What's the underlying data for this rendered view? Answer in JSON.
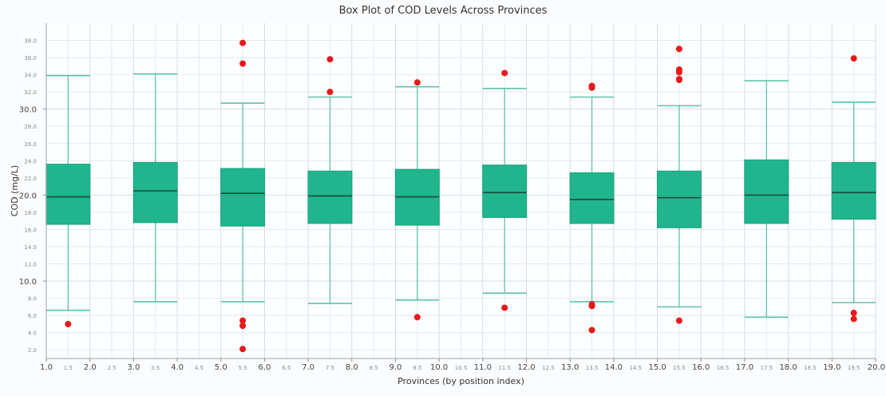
{
  "chart_data": {
    "type": "box",
    "title": "Box Plot of COD Levels Across Provinces",
    "xlabel": "Provinces (by position index)",
    "ylabel": "COD (mg/L)",
    "xlim": [
      1.0,
      20.0
    ],
    "ylim": [
      1.0,
      40.0
    ],
    "x_major_ticks": [
      "1.0",
      "2.0",
      "3.0",
      "4.0",
      "5.0",
      "6.0",
      "7.0",
      "8.0",
      "9.0",
      "10.0",
      "11.0",
      "12.0",
      "13.0",
      "14.0",
      "15.0",
      "16.0",
      "17.0",
      "18.0",
      "19.0",
      "20.0"
    ],
    "x_minor_ticks": [
      "1.5",
      "2.5",
      "3.5",
      "4.5",
      "5.5",
      "6.5",
      "7.5",
      "8.5",
      "9.5",
      "10.5",
      "11.5",
      "12.5",
      "13.5",
      "14.5",
      "15.5",
      "16.5",
      "17.5",
      "18.5",
      "19.5"
    ],
    "y_major_ticks": [
      "10.0",
      "20.0",
      "30.0"
    ],
    "y_minor_ticks": [
      "2.0",
      "4.0",
      "6.0",
      "8.0",
      "12.0",
      "14.0",
      "16.0",
      "18.0",
      "22.0",
      "24.0",
      "26.0",
      "28.0",
      "32.0",
      "34.0",
      "36.0",
      "38.0"
    ],
    "grid": true,
    "colors": {
      "box": "#20b58c",
      "whisker": "#5ec3a8",
      "median": "#1c4a3c",
      "outlier": "#e8191b"
    },
    "boxes": [
      {
        "pos": 1.5,
        "whislo": 6.6,
        "q1": 16.6,
        "med": 19.8,
        "q3": 23.6,
        "whishi": 33.9,
        "fliers": [
          5.0
        ]
      },
      {
        "pos": 3.5,
        "whislo": 7.6,
        "q1": 16.8,
        "med": 20.5,
        "q3": 23.8,
        "whishi": 34.1,
        "fliers": []
      },
      {
        "pos": 5.5,
        "whislo": 7.6,
        "q1": 16.4,
        "med": 20.2,
        "q3": 23.1,
        "whishi": 30.7,
        "fliers": [
          37.7,
          35.3,
          5.4,
          4.8,
          2.1
        ]
      },
      {
        "pos": 7.5,
        "whislo": 7.4,
        "q1": 16.7,
        "med": 19.9,
        "q3": 22.8,
        "whishi": 31.4,
        "fliers": [
          35.8,
          32.0
        ]
      },
      {
        "pos": 9.5,
        "whislo": 7.8,
        "q1": 16.5,
        "med": 19.8,
        "q3": 23.0,
        "whishi": 32.6,
        "fliers": [
          33.1,
          5.8
        ]
      },
      {
        "pos": 11.5,
        "whislo": 8.6,
        "q1": 17.4,
        "med": 20.3,
        "q3": 23.5,
        "whishi": 32.4,
        "fliers": [
          34.2,
          6.9
        ]
      },
      {
        "pos": 13.5,
        "whislo": 7.6,
        "q1": 16.7,
        "med": 19.5,
        "q3": 22.6,
        "whishi": 31.4,
        "fliers": [
          32.7,
          32.5,
          7.3,
          7.1,
          4.3
        ]
      },
      {
        "pos": 15.5,
        "whislo": 7.0,
        "q1": 16.2,
        "med": 19.7,
        "q3": 22.8,
        "whishi": 30.4,
        "fliers": [
          37.0,
          34.6,
          34.3,
          33.5,
          33.4,
          5.4
        ]
      },
      {
        "pos": 17.5,
        "whislo": 5.8,
        "q1": 16.7,
        "med": 20.0,
        "q3": 24.1,
        "whishi": 33.3,
        "fliers": []
      },
      {
        "pos": 19.5,
        "whislo": 7.5,
        "q1": 17.2,
        "med": 20.3,
        "q3": 23.8,
        "whishi": 30.8,
        "fliers": [
          35.9,
          6.3,
          5.6
        ]
      }
    ]
  }
}
